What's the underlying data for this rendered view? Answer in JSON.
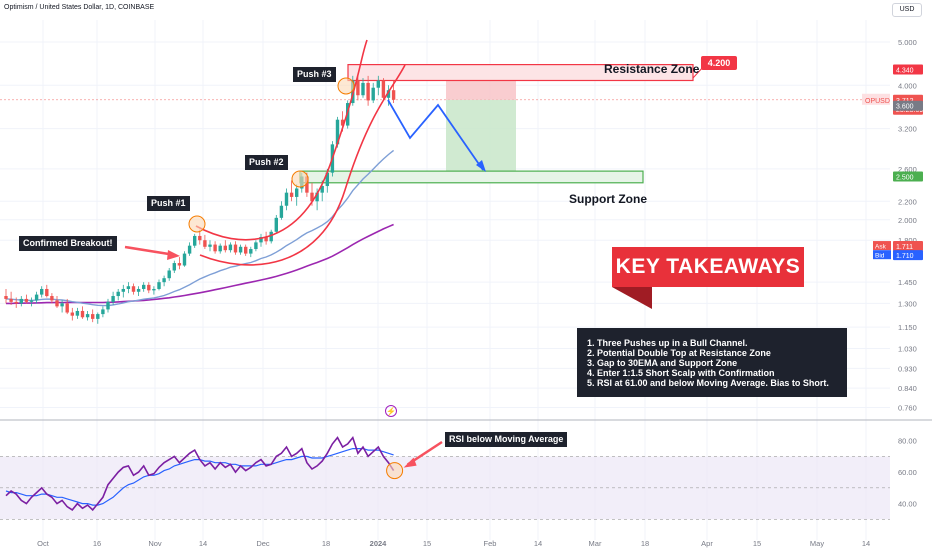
{
  "header": {
    "title": "Optimism / United States Dollar, 1D, COINBASE",
    "currency": "USD"
  },
  "annotations": {
    "push1": "Push #1",
    "push2": "Push #2",
    "push3": "Push #3",
    "confirmed_breakout": "Confirmed Breakout!",
    "resistance_zone": "Resistance Zone",
    "resistance_value": "4.200",
    "support_zone": "Support Zone",
    "rsi_note": "RSI below Moving Average",
    "key_takeaways_title": "KEY TAKEAWAYS",
    "takeaways": [
      "1. Three Pushes up in a Bull Channel.",
      "2. Potential Double Top at Resistance Zone",
      "3. Gap to 30EMA and Support Zone",
      "4. Enter 1:1.5 Short Scalp with Confirmation",
      "5. RSI at 61.00 and below Moving Average. Bias to Short."
    ]
  },
  "colors": {
    "up": "#26a69a",
    "down": "#ef5350",
    "ema": "#7e9fd6",
    "sma": "#9c27b0",
    "rsi": "#7b1fa2",
    "rsi_ma": "#2962ff",
    "red": "#f23645",
    "green": "#4caf50",
    "projection": "#2962ff"
  },
  "chart_data": [
    {
      "type": "candlestick",
      "title": "Optimism / United States Dollar, 1D, COINBASE",
      "y_scale": "log",
      "y_ticks": [
        "5.000",
        "4.000",
        "3.200",
        "2.600",
        "2.200",
        "2.000",
        "1.800",
        "1.450",
        "1.300",
        "1.150",
        "1.030",
        "0.930",
        "0.840",
        "0.760"
      ],
      "x_ticks": [
        "Oct",
        "16",
        "Nov",
        "14",
        "Dec",
        "18",
        "2024",
        "15",
        "Feb",
        "14",
        "Mar",
        "18",
        "Apr",
        "15",
        "May",
        "14"
      ],
      "price_labels": [
        {
          "label": "",
          "value": "4.340",
          "color": "#f23645"
        },
        {
          "label": "OPUSD",
          "value": "3.712",
          "color": "#ef5350",
          "sub": "23:28:09"
        },
        {
          "label": "",
          "value": "3.600",
          "color": "#787b86"
        },
        {
          "label": "",
          "value": "2.500",
          "color": "#4caf50"
        },
        {
          "label": "Ask",
          "value": "1.711",
          "color": "#ef5350"
        },
        {
          "label": "Bid",
          "value": "1.710",
          "color": "#2962ff"
        }
      ],
      "zones": {
        "resistance": [
          4.1,
          4.45
        ],
        "support": [
          2.42,
          2.57
        ],
        "short_entry": 3.71,
        "stop": 4.45,
        "target": 2.55
      },
      "candles": [
        [
          1.35,
          1.4,
          1.3,
          1.33
        ],
        [
          1.33,
          1.38,
          1.29,
          1.31
        ],
        [
          1.31,
          1.34,
          1.27,
          1.3
        ],
        [
          1.3,
          1.35,
          1.28,
          1.33
        ],
        [
          1.33,
          1.36,
          1.3,
          1.31
        ],
        [
          1.31,
          1.34,
          1.28,
          1.32
        ],
        [
          1.32,
          1.38,
          1.3,
          1.36
        ],
        [
          1.36,
          1.42,
          1.34,
          1.4
        ],
        [
          1.4,
          1.43,
          1.34,
          1.35
        ],
        [
          1.35,
          1.37,
          1.3,
          1.32
        ],
        [
          1.32,
          1.35,
          1.27,
          1.28
        ],
        [
          1.28,
          1.32,
          1.24,
          1.3
        ],
        [
          1.3,
          1.33,
          1.23,
          1.24
        ],
        [
          1.24,
          1.27,
          1.19,
          1.22
        ],
        [
          1.22,
          1.27,
          1.2,
          1.25
        ],
        [
          1.25,
          1.28,
          1.2,
          1.21
        ],
        [
          1.21,
          1.25,
          1.19,
          1.23
        ],
        [
          1.23,
          1.26,
          1.18,
          1.2
        ],
        [
          1.2,
          1.24,
          1.17,
          1.23
        ],
        [
          1.23,
          1.28,
          1.21,
          1.26
        ],
        [
          1.26,
          1.33,
          1.24,
          1.31
        ],
        [
          1.31,
          1.38,
          1.29,
          1.35
        ],
        [
          1.35,
          1.4,
          1.32,
          1.38
        ],
        [
          1.38,
          1.43,
          1.34,
          1.4
        ],
        [
          1.4,
          1.45,
          1.37,
          1.42
        ],
        [
          1.42,
          1.44,
          1.36,
          1.38
        ],
        [
          1.38,
          1.42,
          1.35,
          1.4
        ],
        [
          1.4,
          1.45,
          1.38,
          1.43
        ],
        [
          1.43,
          1.45,
          1.37,
          1.39
        ],
        [
          1.39,
          1.42,
          1.36,
          1.4
        ],
        [
          1.4,
          1.47,
          1.39,
          1.45
        ],
        [
          1.45,
          1.5,
          1.42,
          1.48
        ],
        [
          1.48,
          1.56,
          1.46,
          1.54
        ],
        [
          1.54,
          1.62,
          1.52,
          1.6
        ],
        [
          1.6,
          1.65,
          1.55,
          1.58
        ],
        [
          1.58,
          1.7,
          1.57,
          1.68
        ],
        [
          1.68,
          1.78,
          1.66,
          1.75
        ],
        [
          1.75,
          1.86,
          1.73,
          1.84
        ],
        [
          1.84,
          1.9,
          1.76,
          1.8
        ],
        [
          1.8,
          1.85,
          1.72,
          1.74
        ],
        [
          1.74,
          1.8,
          1.7,
          1.76
        ],
        [
          1.76,
          1.79,
          1.68,
          1.7
        ],
        [
          1.7,
          1.77,
          1.68,
          1.75
        ],
        [
          1.75,
          1.8,
          1.69,
          1.71
        ],
        [
          1.71,
          1.78,
          1.69,
          1.76
        ],
        [
          1.76,
          1.79,
          1.67,
          1.69
        ],
        [
          1.69,
          1.76,
          1.67,
          1.74
        ],
        [
          1.74,
          1.76,
          1.66,
          1.68
        ],
        [
          1.68,
          1.74,
          1.65,
          1.72
        ],
        [
          1.72,
          1.8,
          1.7,
          1.78
        ],
        [
          1.78,
          1.86,
          1.74,
          1.83
        ],
        [
          1.83,
          1.88,
          1.76,
          1.79
        ],
        [
          1.79,
          1.9,
          1.77,
          1.88
        ],
        [
          1.88,
          2.05,
          1.86,
          2.02
        ],
        [
          2.02,
          2.2,
          2.0,
          2.15
        ],
        [
          2.15,
          2.35,
          2.1,
          2.3
        ],
        [
          2.3,
          2.45,
          2.2,
          2.25
        ],
        [
          2.25,
          2.4,
          2.15,
          2.35
        ],
        [
          2.35,
          2.55,
          2.3,
          2.5
        ],
        [
          2.5,
          2.55,
          2.25,
          2.3
        ],
        [
          2.3,
          2.42,
          2.15,
          2.2
        ],
        [
          2.2,
          2.35,
          2.1,
          2.3
        ],
        [
          2.3,
          2.45,
          2.2,
          2.38
        ],
        [
          2.38,
          2.6,
          2.3,
          2.55
        ],
        [
          2.55,
          3.0,
          2.5,
          2.95
        ],
        [
          2.95,
          3.4,
          2.9,
          3.35
        ],
        [
          3.35,
          3.5,
          3.15,
          3.25
        ],
        [
          3.25,
          3.7,
          3.2,
          3.65
        ],
        [
          3.65,
          4.2,
          3.6,
          4.1
        ],
        [
          4.1,
          4.25,
          3.7,
          3.8
        ],
        [
          3.8,
          4.15,
          3.75,
          4.05
        ],
        [
          4.05,
          4.2,
          3.6,
          3.7
        ],
        [
          3.7,
          4.05,
          3.65,
          3.95
        ],
        [
          3.95,
          4.2,
          3.8,
          4.1
        ],
        [
          4.1,
          4.15,
          3.7,
          3.75
        ],
        [
          3.75,
          4.0,
          3.6,
          3.9
        ],
        [
          3.9,
          4.1,
          3.65,
          3.712
        ]
      ],
      "ema30": [
        1.33,
        1.328,
        1.325,
        1.323,
        1.321,
        1.32,
        1.322,
        1.327,
        1.329,
        1.328,
        1.325,
        1.323,
        1.318,
        1.311,
        1.307,
        1.301,
        1.297,
        1.291,
        1.287,
        1.285,
        1.286,
        1.29,
        1.296,
        1.303,
        1.311,
        1.315,
        1.321,
        1.328,
        1.332,
        1.337,
        1.345,
        1.354,
        1.367,
        1.382,
        1.395,
        1.412,
        1.431,
        1.453,
        1.474,
        1.491,
        1.508,
        1.522,
        1.538,
        1.551,
        1.566,
        1.574,
        1.586,
        1.596,
        1.605,
        1.62,
        1.638,
        1.651,
        1.669,
        1.692,
        1.719,
        1.751,
        1.777,
        1.806,
        1.84,
        1.869,
        1.891,
        1.917,
        1.945,
        1.98,
        2.032,
        2.102,
        2.163,
        2.236,
        2.325,
        2.395,
        2.468,
        2.528,
        2.597,
        2.667,
        2.736,
        2.8,
        2.86
      ],
      "sma": [
        1.3,
        1.3,
        1.301,
        1.301,
        1.302,
        1.302,
        1.303,
        1.304,
        1.305,
        1.305,
        1.306,
        1.306,
        1.306,
        1.306,
        1.306,
        1.306,
        1.306,
        1.306,
        1.306,
        1.306,
        1.307,
        1.308,
        1.31,
        1.312,
        1.314,
        1.316,
        1.318,
        1.32,
        1.323,
        1.326,
        1.33,
        1.334,
        1.338,
        1.343,
        1.348,
        1.354,
        1.36,
        1.366,
        1.373,
        1.38,
        1.387,
        1.395,
        1.402,
        1.41,
        1.418,
        1.426,
        1.434,
        1.442,
        1.45,
        1.458,
        1.466,
        1.475,
        1.484,
        1.494,
        1.505,
        1.517,
        1.53,
        1.544,
        1.559,
        1.575,
        1.59,
        1.605,
        1.621,
        1.638,
        1.658,
        1.682,
        1.706,
        1.732,
        1.76,
        1.786,
        1.812,
        1.836,
        1.86,
        1.884,
        1.908,
        1.93,
        1.952
      ]
    },
    {
      "type": "line",
      "title": "RSI",
      "y_ticks": [
        "80.00",
        "60.00",
        "40.00"
      ],
      "y_range": [
        20,
        90
      ],
      "bands": [
        70,
        30
      ],
      "series": [
        {
          "values": [
            45,
            48,
            46,
            42,
            40,
            44,
            47,
            50,
            46,
            44,
            40,
            42,
            38,
            36,
            40,
            37,
            39,
            36,
            40,
            44,
            52,
            56,
            60,
            63,
            64,
            58,
            60,
            64,
            58,
            59,
            63,
            66,
            68,
            70,
            66,
            69,
            72,
            74,
            68,
            64,
            66,
            62,
            66,
            63,
            65,
            60,
            64,
            61,
            63,
            66,
            68,
            64,
            65,
            70,
            72,
            76,
            70,
            72,
            75,
            66,
            62,
            64,
            67,
            72,
            78,
            82,
            76,
            78,
            82,
            72,
            76,
            70,
            73,
            76,
            70,
            66,
            61
          ]
        },
        {
          "values": [
            48,
            47,
            47,
            46,
            45,
            45,
            45,
            46,
            46,
            45,
            44,
            44,
            43,
            42,
            41,
            40,
            40,
            39,
            39,
            40,
            42,
            44,
            47,
            50,
            52,
            53,
            55,
            57,
            58,
            58,
            59,
            61,
            62,
            64,
            65,
            66,
            67,
            68,
            68,
            67,
            67,
            66,
            66,
            66,
            65,
            65,
            64,
            64,
            64,
            64,
            65,
            65,
            65,
            66,
            67,
            68,
            68,
            69,
            70,
            70,
            69,
            69,
            69,
            70,
            71,
            72,
            73,
            74,
            75,
            75,
            75,
            74,
            74,
            74,
            73,
            72,
            71
          ]
        }
      ]
    }
  ]
}
